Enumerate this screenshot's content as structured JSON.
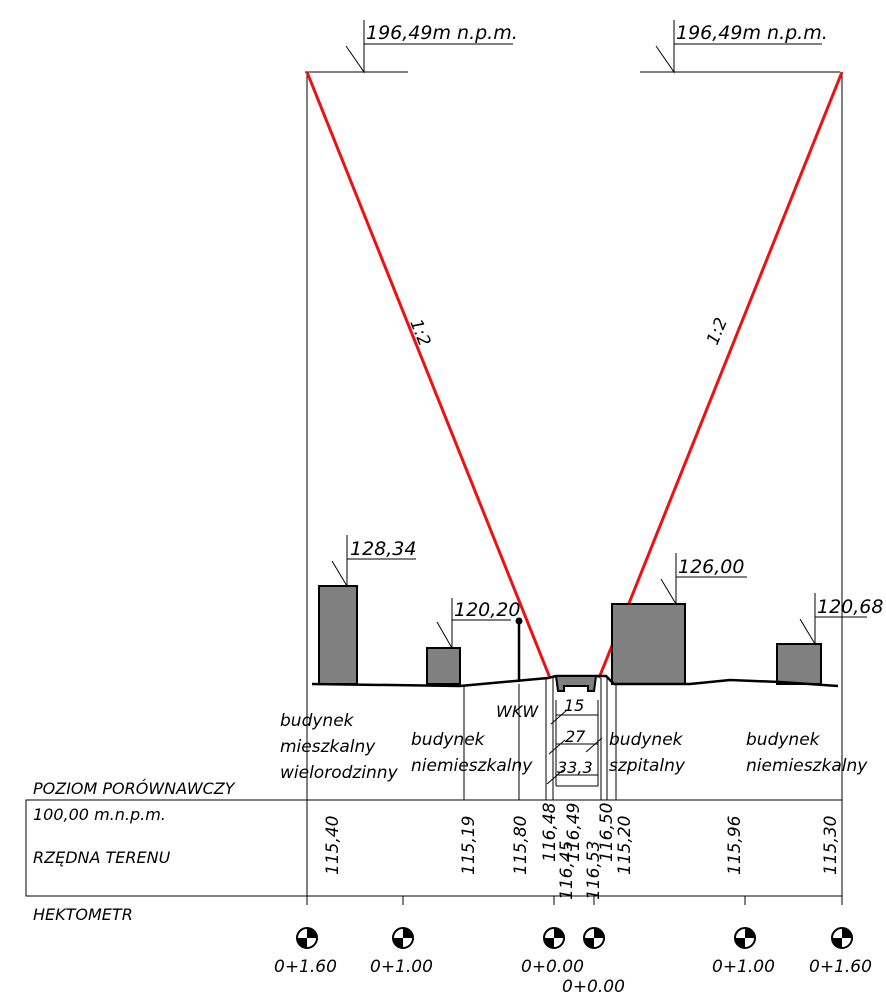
{
  "top_levels": {
    "left": "196,49m  n.p.m.",
    "right": "196,49m  n.p.m."
  },
  "slope_labels": {
    "left": "1:2",
    "right": "1:2"
  },
  "building_heights": {
    "b1": "128,34",
    "b2": "120,20",
    "b3": "126,00",
    "b4": "120,68"
  },
  "building_labels": {
    "b1": [
      "budynek",
      "mieszkalny",
      "wielorodzinny"
    ],
    "b2": [
      "budynek",
      "niemieszkalny"
    ],
    "b3": [
      "budynek",
      "szpitalny"
    ],
    "b4": [
      "budynek",
      "niemieszkalny"
    ]
  },
  "wkw_label": "WKW",
  "road_layers": [
    "15",
    "27",
    "33,3"
  ],
  "reference": {
    "title": "POZIOM PORÓWNAWCZY",
    "value": "100,00  m.n.p.m."
  },
  "terrain_label": "RZĘDNA TERENU",
  "terrain_values": [
    "115,40",
    "115,19",
    "115,80",
    "116,48",
    "116,45",
    "116,49",
    "116,53",
    "116,50",
    "115,20",
    "115,96",
    "115,30"
  ],
  "hectometer_label": "HEKTOMETR",
  "chainage": [
    "0+1.60",
    "0+1.00",
    "0+0.00",
    "0+0.00",
    "0+1.00",
    "0+1.60"
  ],
  "colors": {
    "slope_line": "#ee1111",
    "building_fill": "#808080"
  }
}
